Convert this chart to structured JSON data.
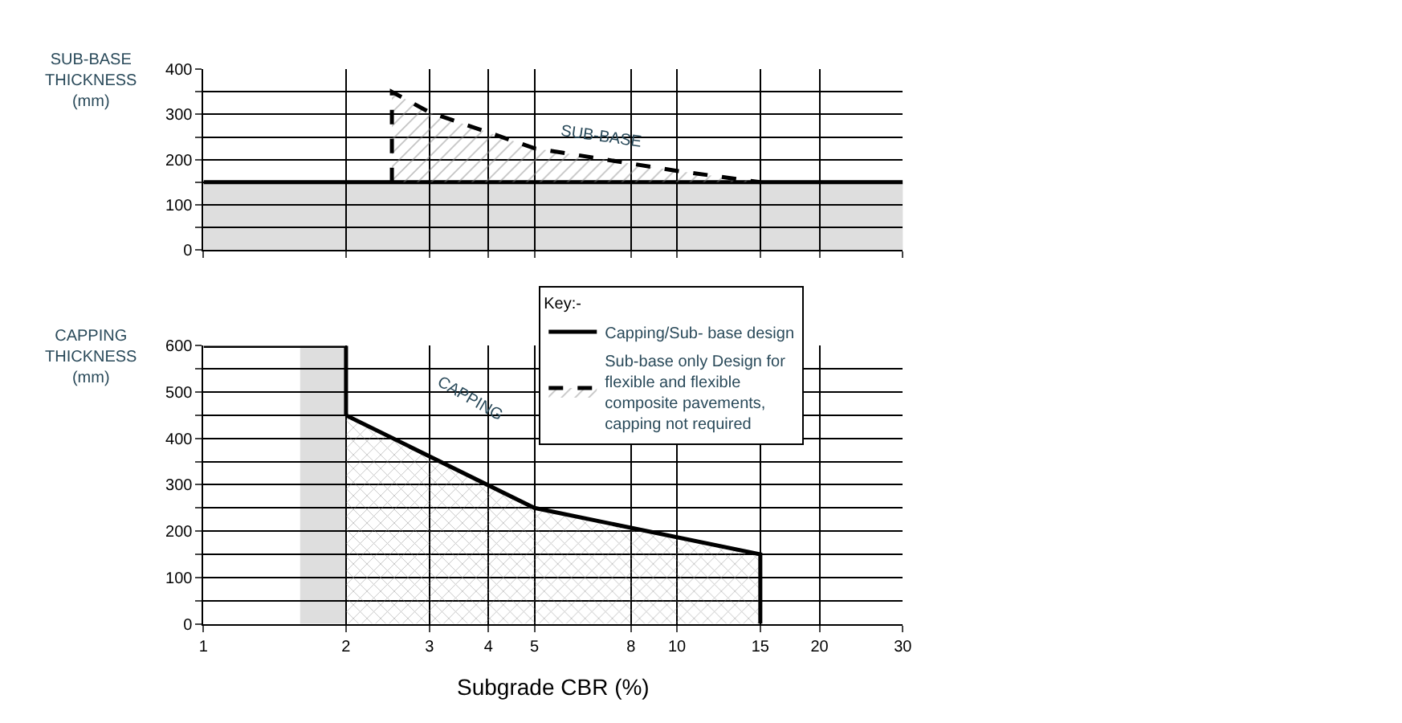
{
  "chart_data": [
    {
      "type": "line",
      "ylabel": "SUB-BASE\nTHICKNESS\n(mm)",
      "log": "x",
      "xlim": [
        1,
        30
      ],
      "xticks": [
        1,
        2,
        3,
        4,
        5,
        8,
        10,
        15,
        20,
        30
      ],
      "ylim": [
        0,
        400
      ],
      "yticks": [
        0,
        {
          "value": 50,
          "label": null
        },
        100,
        {
          "value": 150,
          "label": null
        },
        200,
        {
          "value": 250,
          "label": null
        },
        300,
        {
          "value": 350,
          "label": null
        },
        400
      ],
      "grid": true,
      "tick_labels": "y",
      "legend": "bottom right",
      "legend_title": "Key:-",
      "bands": [
        {
          "axis": "y",
          "from": 0,
          "to": 150,
          "color": "#c8c8c8"
        }
      ],
      "annotations": [
        "SUB-BASE"
      ],
      "series": [
        {
          "name": "Capping/Sub- base design",
          "color": "#000000",
          "line_style": "solid",
          "x": [
            1,
            30
          ],
          "values": [
            150,
            150
          ]
        },
        {
          "name": "Sub-base only Design for\nflexible and flexible\ncomposite pavements,\ncapping not required",
          "type": "area",
          "color": "#000000",
          "line_style": "dashed",
          "x": [
            2.5,
            2.5,
            3,
            4,
            5,
            10,
            15
          ],
          "values": [
            150,
            350,
            305,
            260,
            225,
            175,
            150
          ]
        }
      ]
    },
    {
      "type": "line",
      "ylabel": "CAPPING\nTHICKNESS\n(mm)",
      "xlabel": "Subgrade CBR (%)",
      "log": "x",
      "xlim": [
        1,
        30
      ],
      "xticks": [
        1,
        2,
        3,
        4,
        5,
        8,
        10,
        15,
        20,
        30
      ],
      "ylim": [
        0,
        600
      ],
      "yticks": [
        0,
        {
          "value": 50,
          "label": null
        },
        100,
        {
          "value": 150,
          "label": null
        },
        200,
        {
          "value": 250,
          "label": null
        },
        300,
        {
          "value": 350,
          "label": null
        },
        400,
        {
          "value": 450,
          "label": null
        },
        500,
        {
          "value": 550,
          "label": null
        },
        600
      ],
      "grid": true,
      "bands": [
        {
          "axis": "x",
          "from": 1.6,
          "to": 2,
          "color": "#c8c8c8"
        }
      ],
      "annotations": [
        "CAPPING"
      ],
      "series": [
        {
          "type": "area",
          "color": "#000000",
          "line_style": "solid",
          "x": [
            2,
            5,
            15,
            15
          ],
          "values": [
            450,
            250,
            150,
            0
          ]
        },
        {
          "color": "#000000",
          "line_style": "solid",
          "x": [
            1,
            2,
            2
          ],
          "values": [
            600,
            600,
            450
          ]
        }
      ]
    }
  ]
}
